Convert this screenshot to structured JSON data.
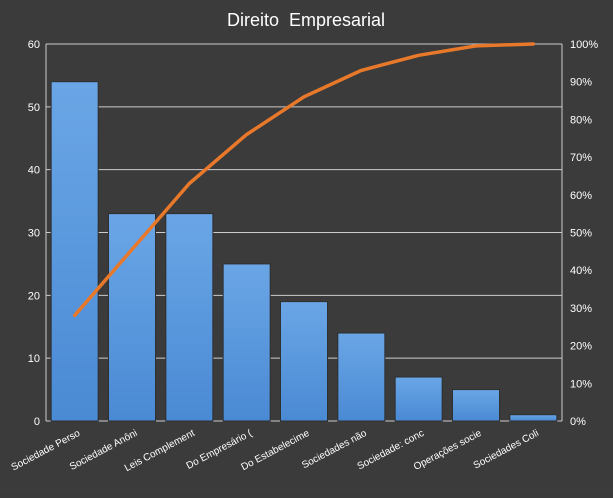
{
  "chart_data": {
    "type": "bar",
    "title": "Direito  Empresarial",
    "categories": [
      "Sociedade Perso",
      "Sociedade Anôni",
      "Leis Complement",
      "Do Empresário (",
      "Do Estabelecime",
      "Sociedades não",
      "Sociedade: conc",
      "Operações socie",
      "Sociedades Coli"
    ],
    "values": [
      54,
      33,
      33,
      25,
      19,
      14,
      7,
      5,
      1
    ],
    "cumulative_percent": [
      28,
      45.5,
      63,
      76,
      86,
      93,
      97,
      99.5,
      100
    ],
    "ylim": [
      0,
      60
    ],
    "yticks": [
      "0",
      "10",
      "20",
      "30",
      "40",
      "50",
      "60"
    ],
    "y2lim": [
      0,
      100
    ],
    "y2ticks": [
      "0%",
      "10%",
      "20%",
      "30%",
      "40%",
      "50%",
      "60%",
      "70%",
      "80%",
      "90%",
      "100%"
    ],
    "grid": true,
    "legend": "none",
    "colors": {
      "background": "#3b3b3b",
      "bar": "#4a8ad4",
      "bar_top": "#6aa6e6",
      "line": "#e8782a",
      "grid": "#cccccc",
      "text": "#ffffff"
    }
  }
}
